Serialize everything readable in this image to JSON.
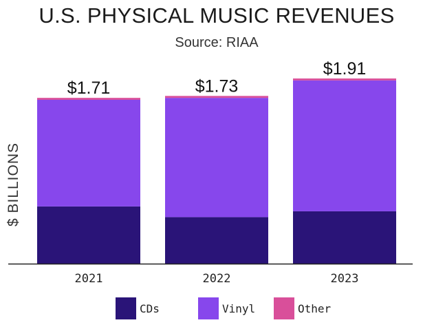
{
  "chart_data": {
    "type": "bar",
    "stacked": true,
    "title": "U.S. PHYSICAL MUSIC REVENUES",
    "subtitle": "Source: RIAA",
    "xlabel": "",
    "ylabel": "$ BILLIONS",
    "categories": [
      "2021",
      "2022",
      "2023"
    ],
    "series": [
      {
        "name": "CDs",
        "color": "#2a1478",
        "values": [
          0.59,
          0.48,
          0.54
        ]
      },
      {
        "name": "Vinyl",
        "color": "#8747ec",
        "values": [
          1.1,
          1.23,
          1.35
        ]
      },
      {
        "name": "Other",
        "color": "#d94f9a",
        "values": [
          0.02,
          0.02,
          0.02
        ]
      }
    ],
    "totals": [
      "$1.71",
      "$1.73",
      "$1.91"
    ],
    "ylim": [
      0,
      1.91
    ],
    "grid": false,
    "legend_position": "bottom"
  }
}
